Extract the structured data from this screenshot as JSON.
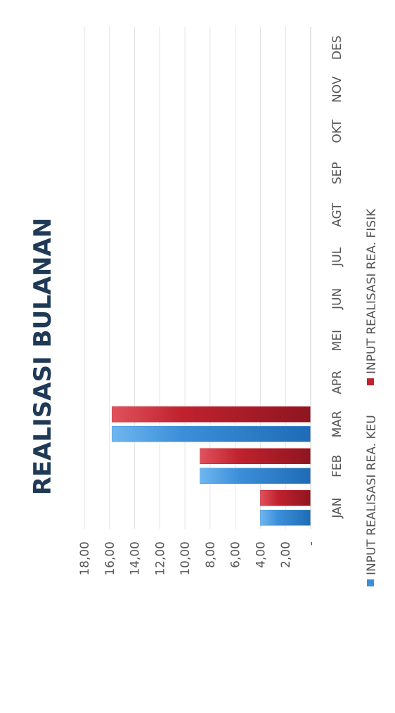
{
  "chart_data": {
    "type": "bar",
    "orientation": "rotated-90-clockwise",
    "title": "REALISASI BULANAN",
    "categories": [
      "JAN",
      "FEB",
      "MAR",
      "APR",
      "MEI",
      "JUN",
      "JUL",
      "AGT",
      "SEP",
      "OKT",
      "NOV",
      "DES"
    ],
    "series": [
      {
        "name": "INPUT REALISASI REA. KEU",
        "color": "#3b8fd9",
        "values": [
          4.0,
          8.8,
          15.8,
          null,
          null,
          null,
          null,
          null,
          null,
          null,
          null,
          null
        ]
      },
      {
        "name": "INPUT REALISASI REA. FISIK",
        "color": "#c0222e",
        "values": [
          4.0,
          8.8,
          15.8,
          null,
          null,
          null,
          null,
          null,
          null,
          null,
          null,
          null
        ]
      }
    ],
    "y_ticks": [
      "-",
      "2,00",
      "4,00",
      "6,00",
      "8,00",
      "10,00",
      "12,00",
      "14,00",
      "16,00",
      "18,00"
    ],
    "ylim": [
      0,
      18
    ],
    "grid": true,
    "legend_position": "bottom"
  }
}
